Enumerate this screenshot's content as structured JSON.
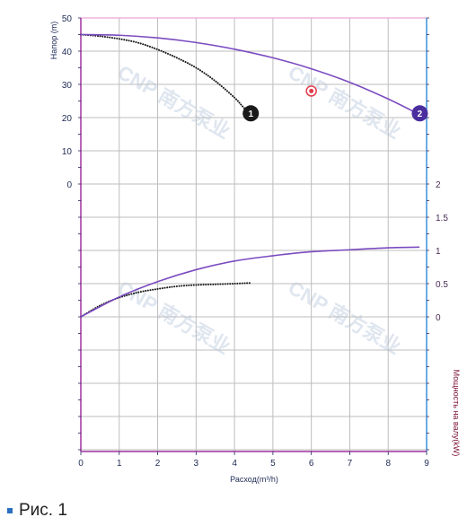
{
  "chart_data": {
    "type": "line",
    "xlabel": "Расход(m³/h)",
    "ylabel_left": "Напор (m)",
    "ylabel_right": "Мощность на валу(kW)",
    "xlim": [
      0,
      9
    ],
    "x_ticks": [
      "0",
      "1",
      "2",
      "3",
      "4",
      "5",
      "6",
      "7",
      "8",
      "9"
    ],
    "head_ylim": [
      0,
      50
    ],
    "head_ticks": [
      "0",
      "10",
      "20",
      "30",
      "40",
      "50"
    ],
    "power_ylim": [
      0,
      2
    ],
    "power_ticks": [
      "0",
      "0.5",
      "1",
      "1.5",
      "2"
    ],
    "grid": true,
    "series": [
      {
        "name": "1",
        "quantity": "head",
        "style": "dotted",
        "color": "#1a1a1a",
        "x": [
          0,
          0.5,
          1,
          1.5,
          2,
          2.5,
          3,
          3.5,
          4,
          4.2,
          4.4
        ],
        "y": [
          45,
          44.5,
          43.7,
          42.5,
          40.5,
          38,
          35,
          31,
          26,
          23.5,
          21
        ]
      },
      {
        "name": "2",
        "quantity": "head",
        "style": "solid",
        "color": "#7b4bc0",
        "x": [
          0,
          1,
          2,
          3,
          4,
          5,
          6,
          7,
          8,
          8.8
        ],
        "y": [
          45,
          44.8,
          44,
          42.6,
          40.6,
          38,
          34.7,
          30.6,
          25.6,
          21
        ]
      },
      {
        "name": "1",
        "quantity": "power",
        "style": "dotted",
        "color": "#1a1a1a",
        "x": [
          0,
          0.5,
          1,
          1.5,
          2,
          2.5,
          3,
          3.5,
          4,
          4.4
        ],
        "y": [
          0,
          0.17,
          0.29,
          0.37,
          0.42,
          0.46,
          0.48,
          0.49,
          0.5,
          0.51
        ]
      },
      {
        "name": "2",
        "quantity": "power",
        "style": "solid",
        "color": "#7b4bc0",
        "x": [
          0,
          1,
          2,
          3,
          4,
          5,
          6,
          7,
          8,
          8.8
        ],
        "y": [
          0,
          0.3,
          0.53,
          0.71,
          0.84,
          0.92,
          0.98,
          1.01,
          1.04,
          1.05
        ]
      }
    ],
    "markers": [
      {
        "label": "1",
        "x": 4.4,
        "head": 21,
        "color": "#1a1a1a"
      },
      {
        "label": "2",
        "x": 8.8,
        "head": 21,
        "color": "#4a2e9e"
      }
    ],
    "operating_point": {
      "x": 6,
      "head": 28,
      "color": "#e23b4c"
    },
    "watermark": "CNP 南方泵业",
    "colors": {
      "grid": "#bdbdbd",
      "left_axis": "#a030a0",
      "right_axis": "#3b8fd9",
      "top_line": "#e9a6d6"
    }
  },
  "caption": "Рис. 1"
}
